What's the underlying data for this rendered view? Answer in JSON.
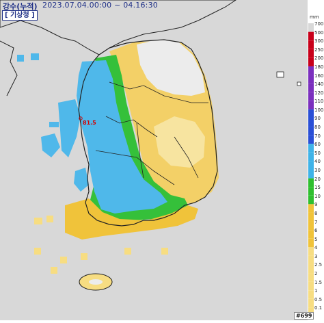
{
  "header": {
    "product_label": "강수(누적)",
    "time_range": "2023.07.04.00:00 ~ 04.16:30",
    "agency": "[ 기상청 ]"
  },
  "legend": {
    "unit": "mm",
    "ticks": [
      "700",
      "500",
      "300",
      "250",
      "200",
      "180",
      "160",
      "140",
      "120",
      "110",
      "100",
      "90",
      "80",
      "70",
      "60",
      "50",
      "40",
      "30",
      "20",
      "15",
      "10",
      "9",
      "8",
      "7",
      "6",
      "5",
      "4",
      "3",
      "2.5",
      "2",
      "1.5",
      "1",
      "0.5",
      "0.1"
    ],
    "colors": {
      "gray": "#d8d8d8",
      "red": "#c8001a",
      "purple": "#7b2fbe",
      "blue": "#2a4fd6",
      "sky": "#3fb3e8",
      "green": "#2fbf2f",
      "yellow": "#f0c33a",
      "pale_yellow": "#f7dd82"
    }
  },
  "map": {
    "max_point_label": "81.5"
  },
  "footer": {
    "frame_id": "#699"
  }
}
